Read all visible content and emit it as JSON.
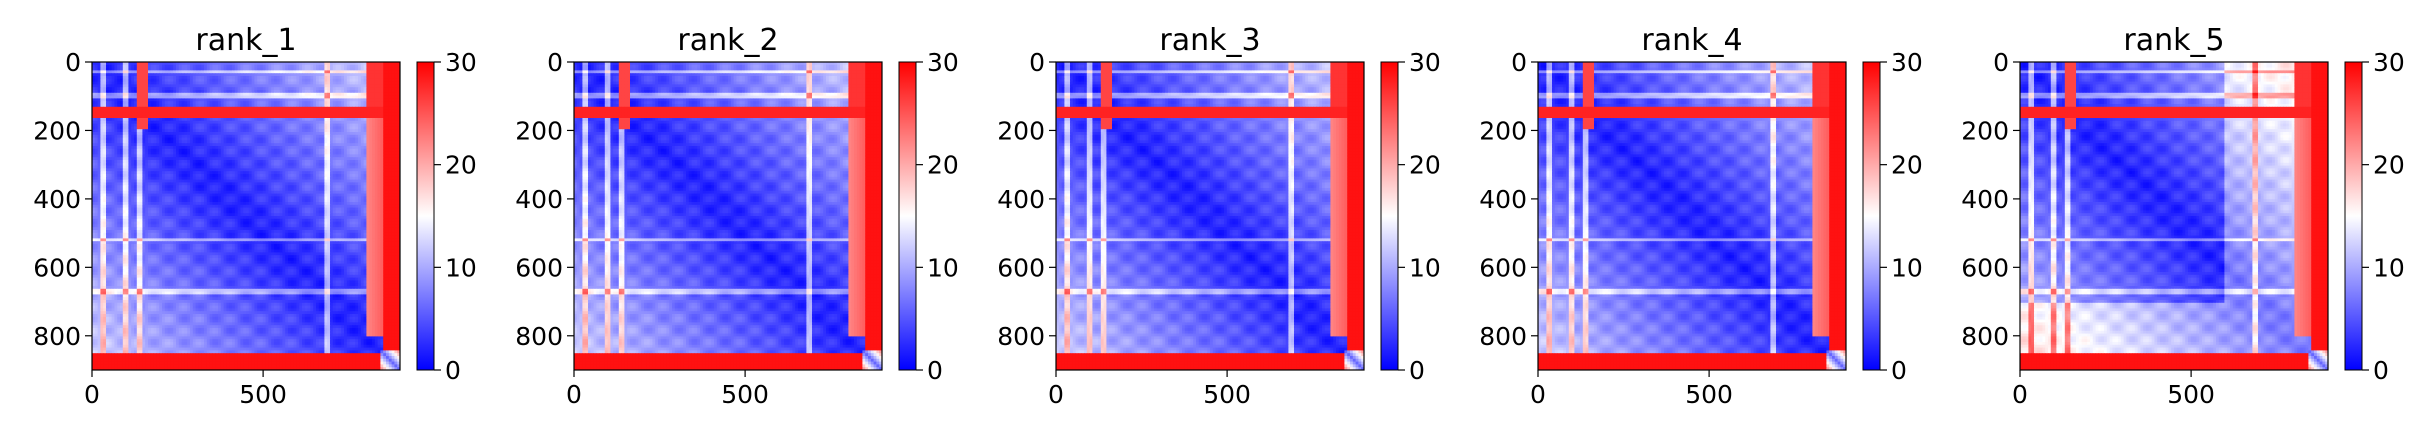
{
  "chart_data": [
    {
      "type": "heatmap",
      "title": "rank_1",
      "colormap": "bwr",
      "matrix_size": 900,
      "xticks": [
        0,
        500
      ],
      "xtick_labels": [
        "0",
        "500"
      ],
      "yticks": [
        0,
        200,
        400,
        600,
        800
      ],
      "ytick_labels": [
        "0",
        "200",
        "400",
        "600",
        "800"
      ],
      "colorbar": {
        "vmin": 0,
        "vmax": 30,
        "ticks": [
          0,
          10,
          20,
          30
        ],
        "tick_labels": [
          "0",
          "10",
          "20",
          "30"
        ]
      },
      "xlim": [
        0,
        900
      ],
      "ylim": [
        900,
        0
      ],
      "grid": false,
      "lower_red_band_start": 850,
      "red_row_band": [
        130,
        160
      ],
      "light_columns": [
        35,
        100,
        140,
        690
      ],
      "light_rows": [
        30,
        100,
        140,
        520,
        670
      ],
      "bottom_right_block": [
        840,
        900
      ],
      "upper_right_block": [
        800,
        900
      ],
      "xlabel": "",
      "ylabel": ""
    },
    {
      "type": "heatmap",
      "title": "rank_2",
      "colormap": "bwr",
      "matrix_size": 900,
      "xticks": [
        0,
        500
      ],
      "xtick_labels": [
        "0",
        "500"
      ],
      "yticks": [
        0,
        200,
        400,
        600,
        800
      ],
      "ytick_labels": [
        "0",
        "200",
        "400",
        "600",
        "800"
      ],
      "colorbar": {
        "vmin": 0,
        "vmax": 30,
        "ticks": [
          0,
          10,
          20,
          30
        ],
        "tick_labels": [
          "0",
          "10",
          "20",
          "30"
        ]
      },
      "xlim": [
        0,
        900
      ],
      "ylim": [
        900,
        0
      ],
      "grid": false,
      "lower_red_band_start": 850,
      "red_row_band": [
        130,
        160
      ],
      "light_columns": [
        35,
        100,
        140,
        690
      ],
      "light_rows": [
        30,
        100,
        140,
        520,
        670
      ],
      "bottom_right_block": [
        840,
        900
      ],
      "upper_right_block": [
        800,
        900
      ],
      "xlabel": "",
      "ylabel": ""
    },
    {
      "type": "heatmap",
      "title": "rank_3",
      "colormap": "bwr",
      "matrix_size": 900,
      "xticks": [
        0,
        500
      ],
      "xtick_labels": [
        "0",
        "500"
      ],
      "yticks": [
        0,
        200,
        400,
        600,
        800
      ],
      "ytick_labels": [
        "0",
        "200",
        "400",
        "600",
        "800"
      ],
      "colorbar": {
        "vmin": 0,
        "vmax": 30,
        "ticks": [
          0,
          10,
          20,
          30
        ],
        "tick_labels": [
          "0",
          "10",
          "20",
          "30"
        ]
      },
      "xlim": [
        0,
        900
      ],
      "ylim": [
        900,
        0
      ],
      "grid": false,
      "lower_red_band_start": 850,
      "red_row_band": [
        130,
        160
      ],
      "light_columns": [
        35,
        100,
        140,
        690
      ],
      "light_rows": [
        30,
        100,
        140,
        520,
        670
      ],
      "bottom_right_block": [
        840,
        900
      ],
      "upper_right_block": [
        800,
        900
      ],
      "xlabel": "",
      "ylabel": ""
    },
    {
      "type": "heatmap",
      "title": "rank_4",
      "colormap": "bwr",
      "matrix_size": 900,
      "xticks": [
        0,
        500
      ],
      "xtick_labels": [
        "0",
        "500"
      ],
      "yticks": [
        0,
        200,
        400,
        600,
        800
      ],
      "ytick_labels": [
        "0",
        "200",
        "400",
        "600",
        "800"
      ],
      "colorbar": {
        "vmin": 0,
        "vmax": 30,
        "ticks": [
          0,
          10,
          20,
          30
        ],
        "tick_labels": [
          "0",
          "10",
          "20",
          "30"
        ]
      },
      "xlim": [
        0,
        900
      ],
      "ylim": [
        900,
        0
      ],
      "grid": false,
      "lower_red_band_start": 850,
      "red_row_band": [
        130,
        160
      ],
      "light_columns": [
        35,
        100,
        140,
        690
      ],
      "light_rows": [
        30,
        100,
        140,
        520,
        670
      ],
      "bottom_right_block": [
        840,
        900
      ],
      "upper_right_block": [
        800,
        900
      ],
      "xlabel": "",
      "ylabel": ""
    },
    {
      "type": "heatmap",
      "title": "rank_5",
      "colormap": "bwr",
      "matrix_size": 900,
      "xticks": [
        0,
        500
      ],
      "xtick_labels": [
        "0",
        "500"
      ],
      "yticks": [
        0,
        200,
        400,
        600,
        800
      ],
      "ytick_labels": [
        "0",
        "200",
        "400",
        "600",
        "800"
      ],
      "colorbar": {
        "vmin": 0,
        "vmax": 30,
        "ticks": [
          0,
          10,
          20,
          30
        ],
        "tick_labels": [
          "0",
          "10",
          "20",
          "30"
        ]
      },
      "xlim": [
        0,
        900
      ],
      "ylim": [
        900,
        0
      ],
      "grid": false,
      "lower_red_band_start": 850,
      "red_row_band": [
        130,
        160
      ],
      "light_columns": [
        35,
        100,
        140,
        690
      ],
      "light_rows": [
        30,
        100,
        140,
        520,
        670
      ],
      "bottom_right_block": [
        840,
        900
      ],
      "upper_right_block": [
        800,
        900
      ],
      "xlabel": "",
      "ylabel": ""
    }
  ]
}
